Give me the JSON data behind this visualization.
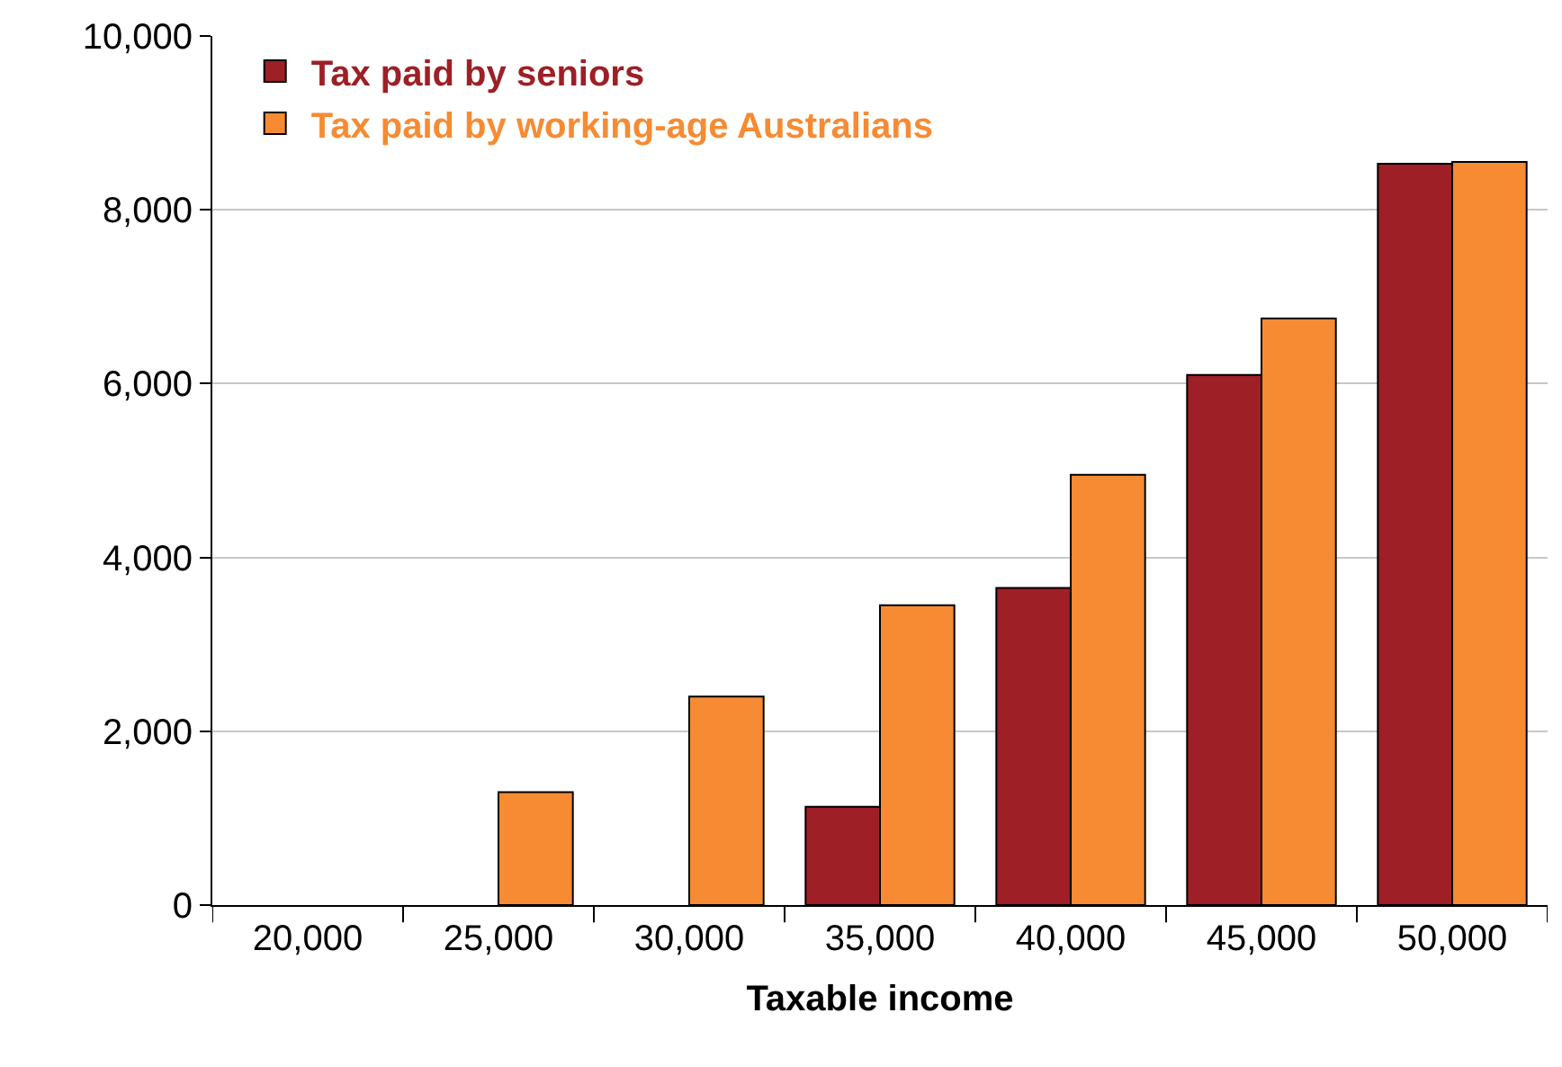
{
  "chart_data": {
    "type": "bar",
    "xlabel": "Taxable income",
    "categories": [
      "20,000",
      "25,000",
      "30,000",
      "35,000",
      "40,000",
      "45,000",
      "50,000"
    ],
    "series": [
      {
        "name": "Tax paid by seniors",
        "color": "#9e1f26",
        "values": [
          null,
          null,
          null,
          1130,
          3650,
          6100,
          8530
        ]
      },
      {
        "name": "Tax paid by working-age Australians",
        "color": "#f68b33",
        "values": [
          null,
          1300,
          2400,
          3450,
          4950,
          6750,
          8550
        ]
      }
    ],
    "ylim": [
      0,
      10000
    ],
    "yticks": [
      {
        "value": 0,
        "label": "0"
      },
      {
        "value": 2000,
        "label": "2,000"
      },
      {
        "value": 4000,
        "label": "4,000"
      },
      {
        "value": 6000,
        "label": "6,000"
      },
      {
        "value": 8000,
        "label": "8,000"
      },
      {
        "value": 10000,
        "label": "10,000"
      }
    ],
    "grid": "y",
    "legend": "top left"
  }
}
